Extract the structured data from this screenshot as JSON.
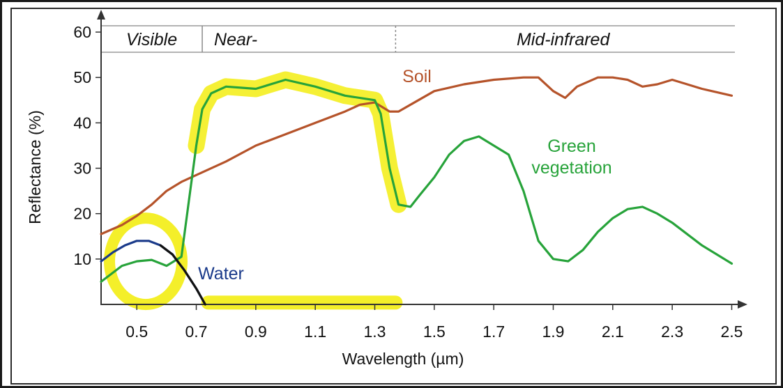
{
  "chart_data": {
    "type": "line",
    "xlabel": "Wavelength (µm)",
    "ylabel": "Reflectance (%)",
    "xlim": [
      0.38,
      2.52
    ],
    "ylim": [
      0,
      64
    ],
    "x_ticks": [
      0.5,
      0.7,
      0.9,
      1.1,
      1.3,
      1.5,
      1.7,
      1.9,
      2.1,
      2.3,
      2.5
    ],
    "x_tick_labels": [
      "0.5",
      "0.7",
      "0.9",
      "1.1",
      "1.3",
      "1.5",
      "1.7",
      "1.9",
      "2.1",
      "2.3",
      "2.5"
    ],
    "y_ticks": [
      10,
      20,
      30,
      40,
      50,
      60
    ],
    "y_tick_labels": [
      "10",
      "20",
      "30",
      "40",
      "50",
      "60"
    ],
    "grid": false,
    "bands": [
      {
        "label": "Visible",
        "from": 0.38,
        "to": 0.72
      },
      {
        "label": "Near-",
        "from": 0.72,
        "to": 1.37
      },
      {
        "label": "Mid-infrared",
        "from": 1.37,
        "to": 2.52
      }
    ],
    "series": [
      {
        "name": "Soil",
        "color": "#b5532a",
        "x": [
          0.38,
          0.45,
          0.5,
          0.55,
          0.6,
          0.65,
          0.7,
          0.8,
          0.9,
          1.0,
          1.1,
          1.2,
          1.25,
          1.3,
          1.35,
          1.38,
          1.42,
          1.5,
          1.6,
          1.7,
          1.8,
          1.85,
          1.9,
          1.94,
          1.98,
          2.05,
          2.1,
          2.15,
          2.2,
          2.25,
          2.3,
          2.35,
          2.4,
          2.5
        ],
        "y": [
          15.5,
          17.5,
          19.5,
          22,
          25,
          27,
          28.5,
          31.5,
          35,
          37.5,
          40,
          42.5,
          44,
          44.5,
          42.5,
          42.5,
          44,
          47,
          48.5,
          49.5,
          50,
          50,
          47,
          45.5,
          48,
          50,
          50,
          49.5,
          48,
          48.5,
          49.5,
          48.5,
          47.5,
          46
        ]
      },
      {
        "name": "Green vegetation",
        "color": "#27a33a",
        "x": [
          0.38,
          0.45,
          0.5,
          0.55,
          0.6,
          0.65,
          0.7,
          0.72,
          0.75,
          0.8,
          0.9,
          1.0,
          1.1,
          1.2,
          1.3,
          1.32,
          1.35,
          1.38,
          1.42,
          1.45,
          1.5,
          1.55,
          1.6,
          1.65,
          1.7,
          1.75,
          1.8,
          1.85,
          1.9,
          1.95,
          2.0,
          2.05,
          2.1,
          2.15,
          2.2,
          2.25,
          2.3,
          2.4,
          2.5
        ],
        "y": [
          5,
          8.5,
          9.5,
          9.8,
          8.5,
          10.5,
          35,
          43,
          46.5,
          48,
          47.5,
          49.5,
          48,
          46,
          45,
          42,
          30,
          22,
          21.5,
          24,
          28,
          33,
          36,
          37,
          35,
          33,
          25,
          14,
          10,
          9.5,
          12,
          16,
          19,
          21,
          21.5,
          20,
          18,
          13,
          9
        ]
      },
      {
        "name": "Water",
        "color": "#1a3a8a",
        "x": [
          0.38,
          0.42,
          0.46,
          0.5,
          0.54,
          0.58,
          0.62,
          0.66,
          0.7,
          0.73
        ],
        "y": [
          9.5,
          11.5,
          13,
          14,
          14,
          13,
          11,
          7.5,
          3.5,
          0
        ]
      }
    ],
    "annotations": [
      "Soil",
      "Green",
      "vegetation",
      "Water"
    ],
    "highlight_color": "#f4ef2a"
  }
}
